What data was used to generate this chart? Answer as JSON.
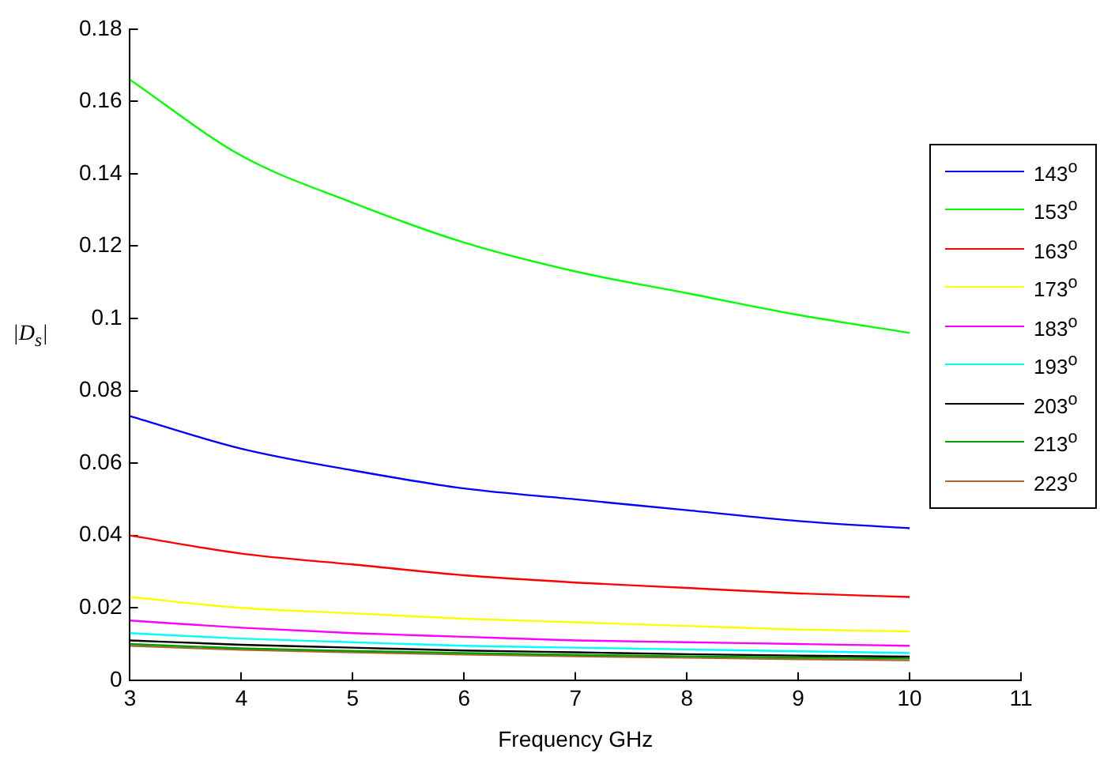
{
  "chart_data": {
    "type": "line",
    "xlabel": "Frequency GHz",
    "ylabel": "|D$_{s}$|",
    "x": [
      3,
      4,
      5,
      6,
      7,
      8,
      9,
      10
    ],
    "series": [
      {
        "name": "143$^{o}$",
        "color": "#0000ff",
        "values": [
          0.073,
          0.064,
          0.058,
          0.053,
          0.05,
          0.047,
          0.044,
          0.042
        ]
      },
      {
        "name": "153$^{o}$",
        "color": "#00ff00",
        "values": [
          0.166,
          0.145,
          0.132,
          0.121,
          0.113,
          0.107,
          0.101,
          0.096
        ]
      },
      {
        "name": "163$^{o}$",
        "color": "#ff0000",
        "values": [
          0.04,
          0.035,
          0.032,
          0.029,
          0.027,
          0.0255,
          0.024,
          0.023
        ]
      },
      {
        "name": "173$^{o}$",
        "color": "#ffff00",
        "values": [
          0.023,
          0.02,
          0.0185,
          0.017,
          0.016,
          0.015,
          0.014,
          0.0135
        ]
      },
      {
        "name": "183$^{o}$",
        "color": "#ff00ff",
        "values": [
          0.0165,
          0.0145,
          0.013,
          0.012,
          0.011,
          0.0105,
          0.01,
          0.0095
        ]
      },
      {
        "name": "193$^{o}$",
        "color": "#00ffff",
        "values": [
          0.013,
          0.0115,
          0.0105,
          0.0095,
          0.009,
          0.0085,
          0.008,
          0.0075
        ]
      },
      {
        "name": "203$^{o}$",
        "color": "#000000",
        "values": [
          0.011,
          0.0098,
          0.009,
          0.0082,
          0.0077,
          0.0072,
          0.0068,
          0.0065
        ]
      },
      {
        "name": "213$^{o}$",
        "color": "#00a000",
        "values": [
          0.01,
          0.0088,
          0.0081,
          0.0075,
          0.007,
          0.0066,
          0.0063,
          0.006
        ]
      },
      {
        "name": "223$^{o}$",
        "color": "#aa6633",
        "values": [
          0.0095,
          0.0084,
          0.0077,
          0.0071,
          0.0066,
          0.0062,
          0.0058,
          0.0055
        ]
      }
    ],
    "xlim": [
      3,
      11
    ],
    "xticks": [
      3,
      4,
      5,
      6,
      7,
      8,
      9,
      10,
      11
    ],
    "ylim": [
      0,
      0.18
    ],
    "yticks": [
      0,
      0.02,
      0.04,
      0.06,
      0.08,
      0.1,
      0.12,
      0.14,
      0.16,
      0.18
    ],
    "grid": false,
    "legend": "right",
    "marker": "none",
    "line_style": "solid"
  }
}
